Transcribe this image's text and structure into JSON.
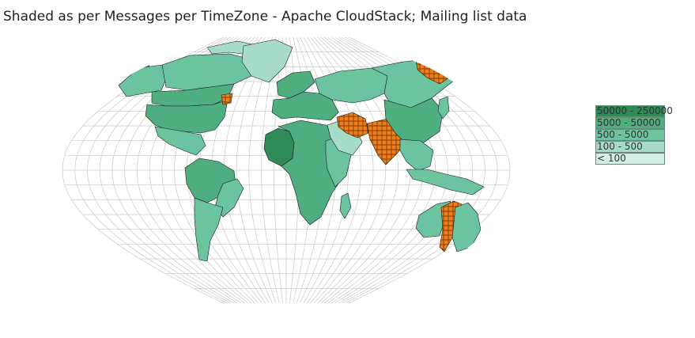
{
  "title": "Shaded as per Messages per TimeZone - Apache CloudStack; Mailing list data",
  "legend": [
    {
      "label": "50000 - 250000",
      "color": "#2e8b57"
    },
    {
      "label": "5000 - 50000",
      "color": "#4fae7f"
    },
    {
      "label": "500 - 5000",
      "color": "#6cc3a0"
    },
    {
      "label": "100 - 500",
      "color": "#a6dcc7"
    },
    {
      "label": "< 100",
      "color": "#d3efe5"
    }
  ],
  "colors": {
    "graticule": "#c9c9c9",
    "highlight": "#f07d1c",
    "highlight_pattern": "#5a3000",
    "border": "#1a1a1a"
  },
  "regions": [
    {
      "name": "western-alaska",
      "class": 1
    },
    {
      "name": "alaska",
      "class": 3
    },
    {
      "name": "canada-north",
      "class": 3
    },
    {
      "name": "arctic-islands",
      "class": 4
    },
    {
      "name": "greenland",
      "class": 4
    },
    {
      "name": "canada-south",
      "class": 2
    },
    {
      "name": "usa",
      "class": 2
    },
    {
      "name": "mexico",
      "class": 3
    },
    {
      "name": "nova-scotia",
      "class": 0
    },
    {
      "name": "south-america-north",
      "class": 2
    },
    {
      "name": "brazil-east",
      "class": 3
    },
    {
      "name": "south-america-south",
      "class": 3
    },
    {
      "name": "uk-scandinavia",
      "class": 2
    },
    {
      "name": "europe",
      "class": 2
    },
    {
      "name": "russia-west",
      "class": 3
    },
    {
      "name": "siberia",
      "class": 3
    },
    {
      "name": "far-east-russia",
      "class": 0
    },
    {
      "name": "west-africa",
      "class": 1
    },
    {
      "name": "africa",
      "class": 2
    },
    {
      "name": "east-africa",
      "class": 3
    },
    {
      "name": "madagascar",
      "class": 3
    },
    {
      "name": "arabia",
      "class": 4
    },
    {
      "name": "iran",
      "class": 0
    },
    {
      "name": "india",
      "class": 0
    },
    {
      "name": "china",
      "class": 2
    },
    {
      "name": "southeast-asia",
      "class": 3
    },
    {
      "name": "japan",
      "class": 3
    },
    {
      "name": "indonesia",
      "class": 3
    },
    {
      "name": "australia-west",
      "class": 3
    },
    {
      "name": "australia-central",
      "class": 0
    },
    {
      "name": "australia-east",
      "class": 3
    },
    {
      "name": "new-zealand",
      "class": 0
    }
  ]
}
